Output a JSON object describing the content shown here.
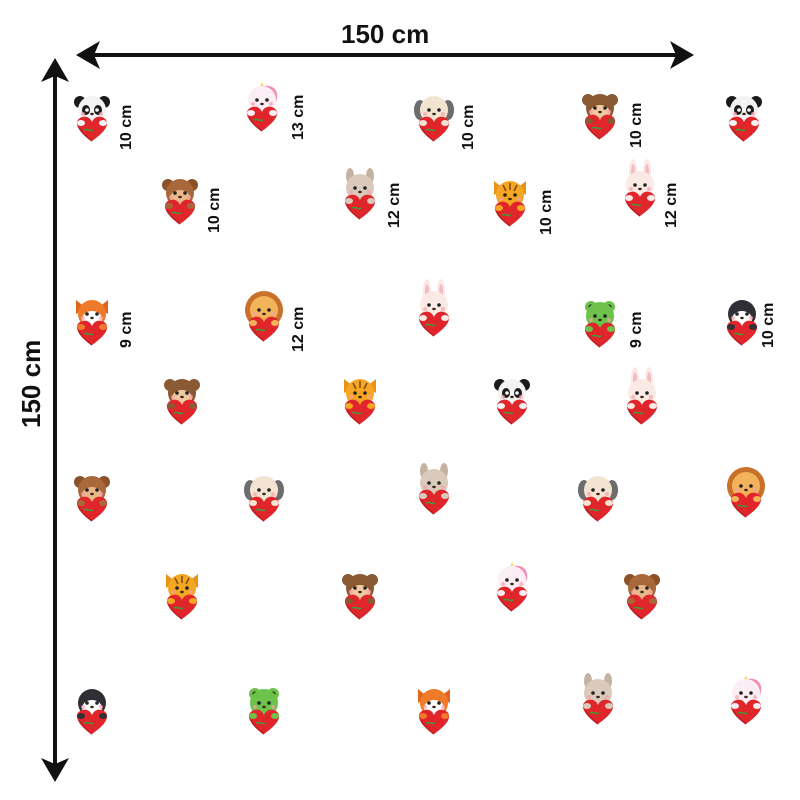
{
  "dimensions": {
    "width_label": "150 cm",
    "height_label": "150 cm"
  },
  "palette": {
    "arrow": "#111111",
    "heart": "#e0262b",
    "heart_shadow": "#b81d21",
    "leaf": "#3f9a3a",
    "label_text": "#111111"
  },
  "stickers": [
    {
      "id": "s1",
      "animal": "panda",
      "size_label": "10 cm"
    },
    {
      "id": "s2",
      "animal": "unicorn",
      "size_label": "13 cm"
    },
    {
      "id": "s3",
      "animal": "dog",
      "size_label": "10 cm"
    },
    {
      "id": "s4",
      "animal": "monkey",
      "size_label": "10 cm"
    },
    {
      "id": "s5",
      "animal": "panda",
      "size_label": ""
    },
    {
      "id": "s6",
      "animal": "bear",
      "size_label": "10 cm"
    },
    {
      "id": "s7",
      "animal": "llama",
      "size_label": "12 cm"
    },
    {
      "id": "s8",
      "animal": "tiger",
      "size_label": "10 cm"
    },
    {
      "id": "s9",
      "animal": "bunny",
      "size_label": "12 cm"
    },
    {
      "id": "s10",
      "animal": "fox",
      "size_label": "9 cm"
    },
    {
      "id": "s11",
      "animal": "lion",
      "size_label": "12 cm"
    },
    {
      "id": "s12",
      "animal": "bunny",
      "size_label": ""
    },
    {
      "id": "s13",
      "animal": "frog",
      "size_label": "9 cm"
    },
    {
      "id": "s14",
      "animal": "penguin",
      "size_label": "10 cm"
    },
    {
      "id": "s15",
      "animal": "monkey",
      "size_label": ""
    },
    {
      "id": "s16",
      "animal": "tiger",
      "size_label": ""
    },
    {
      "id": "s17",
      "animal": "panda",
      "size_label": ""
    },
    {
      "id": "s18",
      "animal": "bunny",
      "size_label": ""
    },
    {
      "id": "s19",
      "animal": "bear",
      "size_label": ""
    },
    {
      "id": "s20",
      "animal": "dog",
      "size_label": ""
    },
    {
      "id": "s21",
      "animal": "llama",
      "size_label": ""
    },
    {
      "id": "s22",
      "animal": "dog",
      "size_label": ""
    },
    {
      "id": "s23",
      "animal": "lion",
      "size_label": ""
    },
    {
      "id": "s24",
      "animal": "tiger",
      "size_label": ""
    },
    {
      "id": "s25",
      "animal": "monkey",
      "size_label": ""
    },
    {
      "id": "s26",
      "animal": "unicorn",
      "size_label": ""
    },
    {
      "id": "s27",
      "animal": "bear",
      "size_label": ""
    },
    {
      "id": "s28",
      "animal": "penguin",
      "size_label": ""
    },
    {
      "id": "s29",
      "animal": "frog",
      "size_label": ""
    },
    {
      "id": "s30",
      "animal": "fox",
      "size_label": ""
    },
    {
      "id": "s31",
      "animal": "llama",
      "size_label": ""
    },
    {
      "id": "s32",
      "animal": "unicorn",
      "size_label": ""
    }
  ]
}
